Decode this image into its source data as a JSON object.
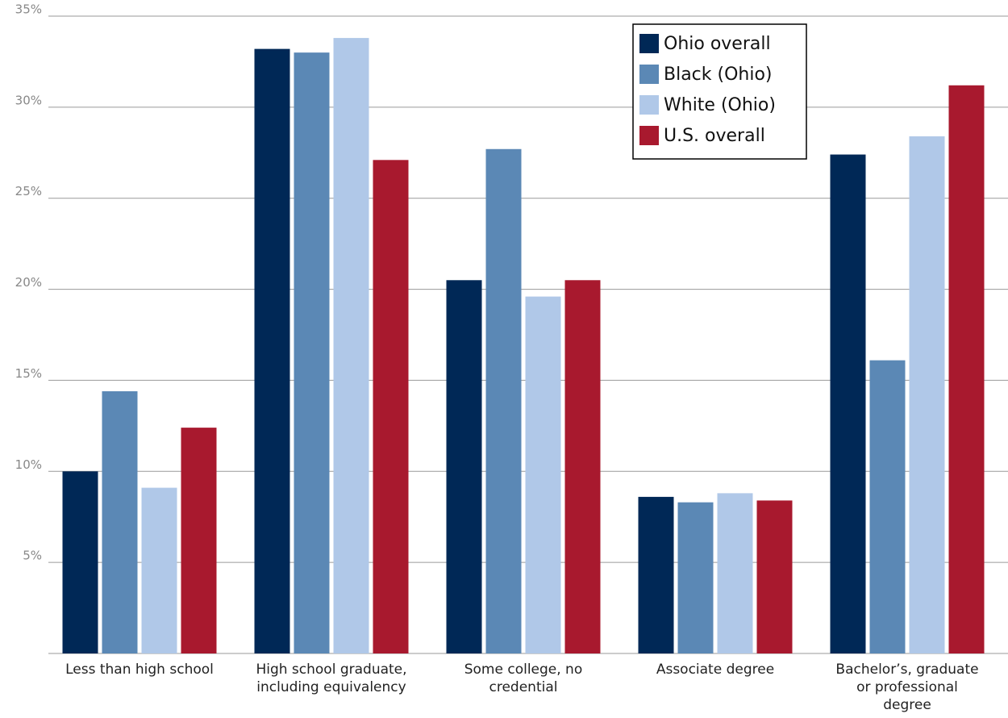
{
  "chart_data": {
    "type": "bar",
    "categories": [
      "Less than high school",
      "High school graduate, including equivalency",
      "Some college, no credential",
      "Associate degree",
      "Bachelor’s, graduate or professional degree"
    ],
    "series": [
      {
        "name": "Ohio overall",
        "color": "#002856",
        "values": [
          10.0,
          33.2,
          20.5,
          8.6,
          27.4
        ]
      },
      {
        "name": "Black (Ohio)",
        "color": "#5b88b5",
        "values": [
          14.4,
          33.0,
          27.7,
          8.3,
          16.1
        ]
      },
      {
        "name": "White (Ohio)",
        "color": "#b0c8e8",
        "values": [
          9.1,
          33.8,
          19.6,
          8.8,
          28.4
        ]
      },
      {
        "name": "U.S. overall",
        "color": "#a8192e",
        "values": [
          12.4,
          27.1,
          20.5,
          8.4,
          31.2
        ]
      }
    ],
    "ylim": [
      0,
      35
    ],
    "yticks": [
      {
        "value": 5,
        "label": "5%"
      },
      {
        "value": 10,
        "label": "10%"
      },
      {
        "value": 15,
        "label": "15%"
      },
      {
        "value": 20,
        "label": "20%"
      },
      {
        "value": 25,
        "label": "25%"
      },
      {
        "value": 30,
        "label": "30%"
      },
      {
        "value": 35,
        "label": "35%"
      }
    ],
    "grid": true,
    "legend": "top-right"
  }
}
